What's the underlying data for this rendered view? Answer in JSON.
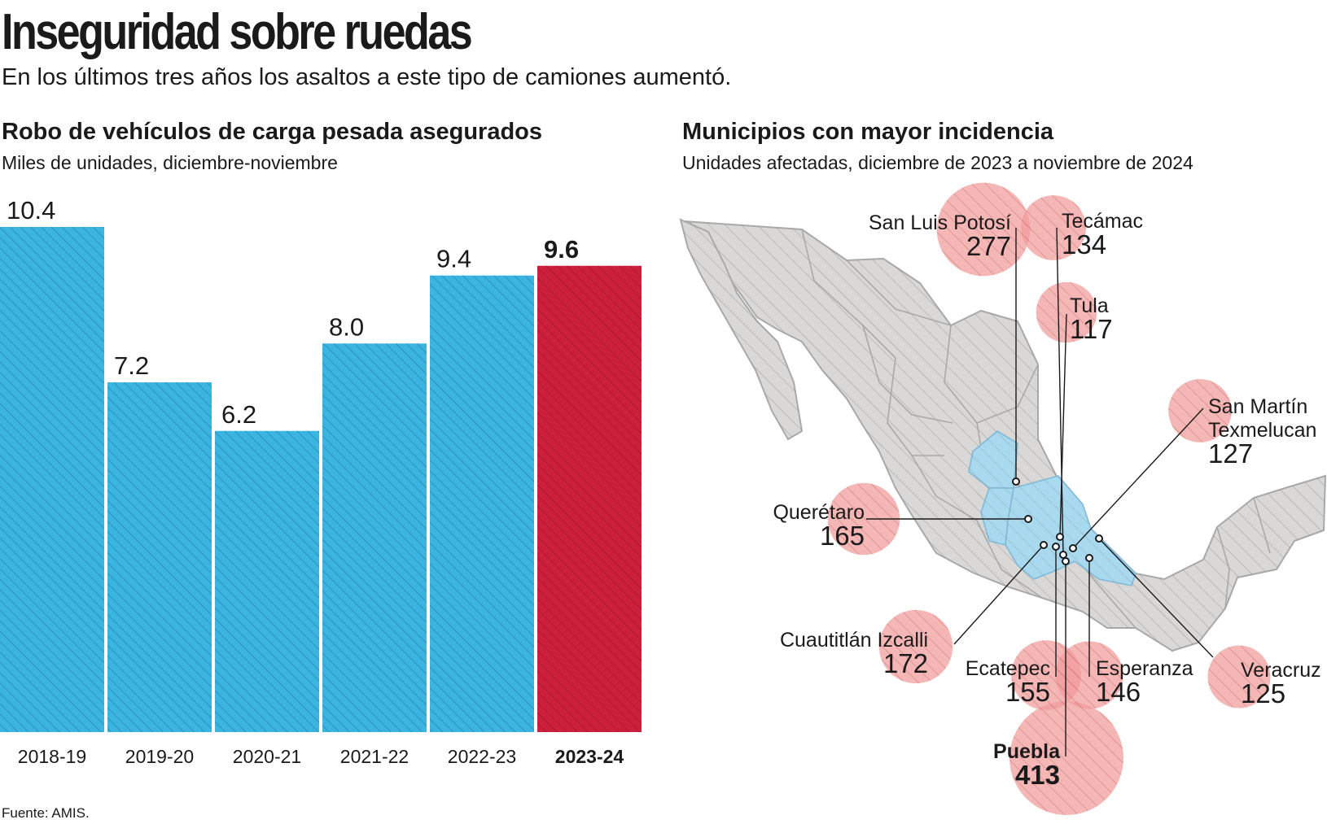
{
  "header": {
    "title": "Inseguridad sobre ruedas",
    "subtitle": "En los últimos tres años los asaltos a este tipo de camiones aumentó."
  },
  "chart_data": [
    {
      "type": "bar",
      "title": "Robo de vehículos de carga pesada asegurados",
      "subtitle": "Miles de unidades, diciembre-noviembre",
      "categories": [
        "2018-19",
        "2019-20",
        "2020-21",
        "2021-22",
        "2022-23",
        "2023-24"
      ],
      "values": [
        10.4,
        7.2,
        6.2,
        8.0,
        9.4,
        9.6
      ],
      "value_labels": [
        "10.4",
        "7.2",
        "6.2",
        "8.0",
        "9.4",
        "9.6"
      ],
      "highlight_index": 5,
      "colors": {
        "default": "#3ab4e0",
        "highlight": "#cc1f3c",
        "hatch": "#1b4f6b",
        "hatch_highlight": "#6b0f1f"
      },
      "ylim": [
        0,
        10.4
      ],
      "xlabel": "",
      "ylabel": ""
    },
    {
      "type": "bubble-map",
      "title": "Municipios con mayor incidencia",
      "subtitle": "Unidades afectadas, diciembre de 2023 a noviembre de 2024",
      "bubble_color": "#f19a9a",
      "region_color": "#d9d8d6",
      "highlight_region_color": "#a8d9ef",
      "points": [
        {
          "name": "San Luis Potosí",
          "value": 277,
          "value_label": "277"
        },
        {
          "name": "Tecámac",
          "value": 134,
          "value_label": "134"
        },
        {
          "name": "Tula",
          "value": 117,
          "value_label": "117"
        },
        {
          "name": "San Martín",
          "name2": "Texmelucan",
          "value": 127,
          "value_label": "127"
        },
        {
          "name": "Querétaro",
          "value": 165,
          "value_label": "165"
        },
        {
          "name": "Cuautitlán Izcalli",
          "value": 172,
          "value_label": "172"
        },
        {
          "name": "Ecatepec",
          "value": 155,
          "value_label": "155"
        },
        {
          "name": "Esperanza",
          "value": 146,
          "value_label": "146"
        },
        {
          "name": "Veracruz",
          "value": 125,
          "value_label": "125"
        },
        {
          "name": "Puebla",
          "value": 413,
          "value_label": "413"
        }
      ]
    }
  ],
  "source": "Fuente: AMIS."
}
